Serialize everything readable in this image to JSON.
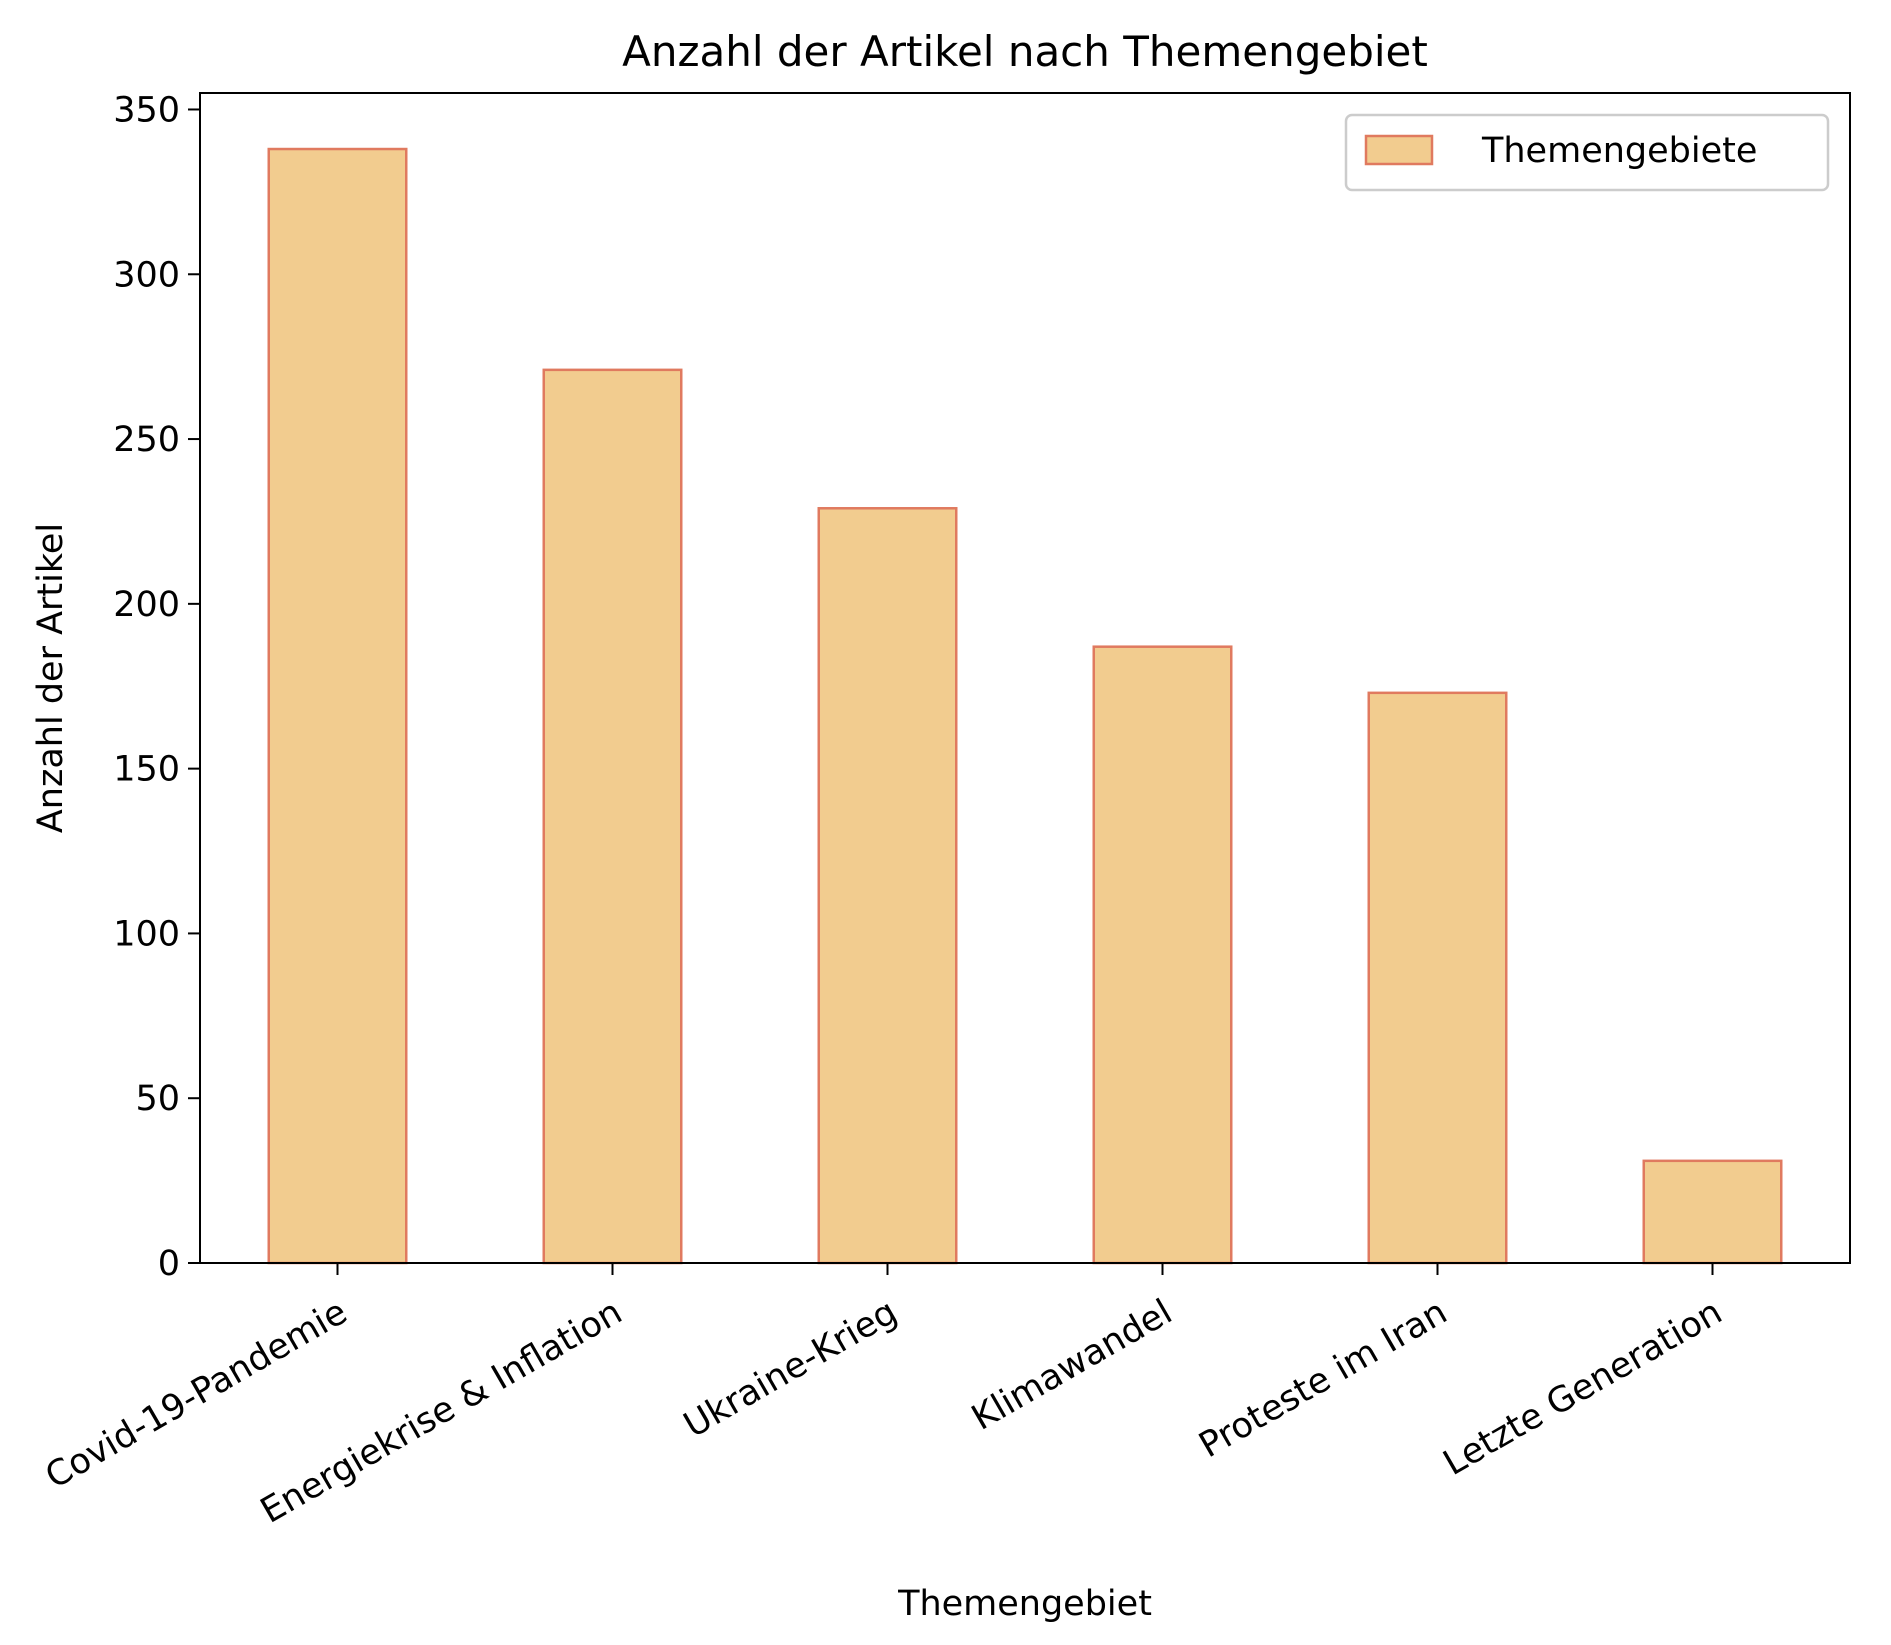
{
  "chart_data": {
    "type": "bar",
    "title": "Anzahl der Artikel nach Themengebiet",
    "xlabel": "Themengebiet",
    "ylabel": "Anzahl der Artikel",
    "categories": [
      "Covid-19-Pandemie",
      "Energiekrise & Inflation",
      "Ukraine-Krieg",
      "Klimawandel",
      "Proteste im Iran",
      "Letzte Generation"
    ],
    "series": [
      {
        "name": "Themengebiete",
        "values": [
          338,
          271,
          229,
          187,
          173,
          31
        ]
      }
    ],
    "ylim": [
      0,
      355
    ],
    "yticks": [
      0,
      50,
      100,
      150,
      200,
      250,
      300,
      350
    ],
    "legend_position": "top-right",
    "grid": false,
    "colors": {
      "bar_fill": "#f2cc8f",
      "bar_edge": "#e07a5f",
      "axis": "#000000",
      "legend_border": "#cccccc"
    }
  }
}
